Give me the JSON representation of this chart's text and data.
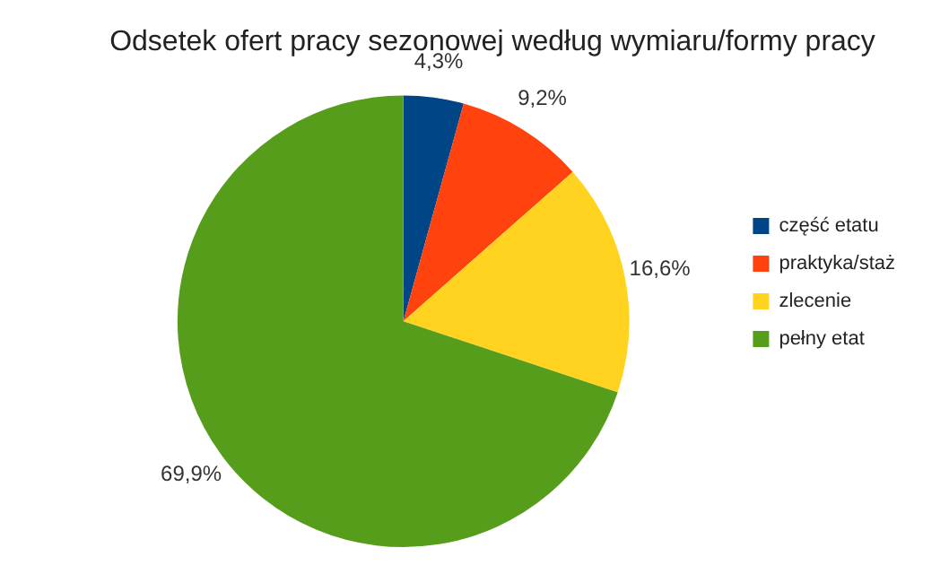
{
  "chart_data": {
    "type": "pie",
    "title": "Odsetek ofert pracy sezonowej według wymiaru/formy pracy",
    "categories": [
      "część etatu",
      "praktyka/staż",
      "zlecenie",
      "pełny etat"
    ],
    "values": [
      4.3,
      9.2,
      16.6,
      69.9
    ],
    "colors": [
      "#004586",
      "#ff420e",
      "#ffd320",
      "#579d1c"
    ],
    "value_labels": [
      "4,3%",
      "9,2%",
      "16,6%",
      "69,9%"
    ],
    "legend": "right"
  }
}
